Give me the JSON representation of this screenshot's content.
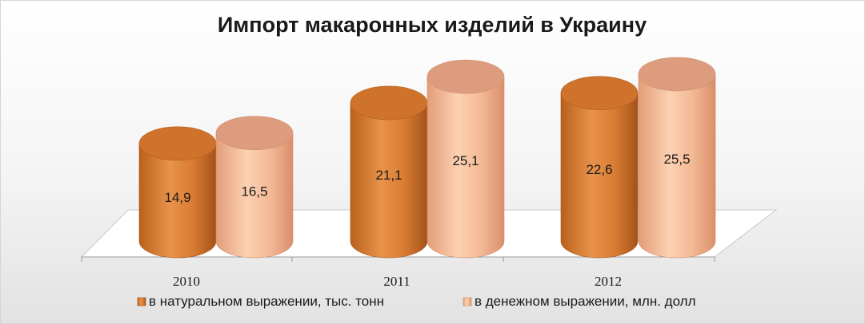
{
  "chart_data": {
    "type": "bar",
    "style": "3d-cylinder",
    "title": "Импорт макаронных изделий в Украину",
    "categories": [
      "2010",
      "2011",
      "2012"
    ],
    "series": [
      {
        "name": "в натуральном выражении, тыс. тонн",
        "values": [
          14.9,
          21.1,
          22.6
        ],
        "labels": [
          "14,9",
          "21,1",
          "22,6"
        ],
        "color": "#e08a3c"
      },
      {
        "name": "в денежном выражении, млн. долл",
        "values": [
          16.5,
          25.1,
          25.5
        ],
        "labels": [
          "16,5",
          "25,1",
          "25,5"
        ],
        "color": "#f2b48e"
      }
    ],
    "ylim": [
      0,
      30
    ],
    "axes_visible": false,
    "grid": false,
    "legend": "bottom"
  }
}
